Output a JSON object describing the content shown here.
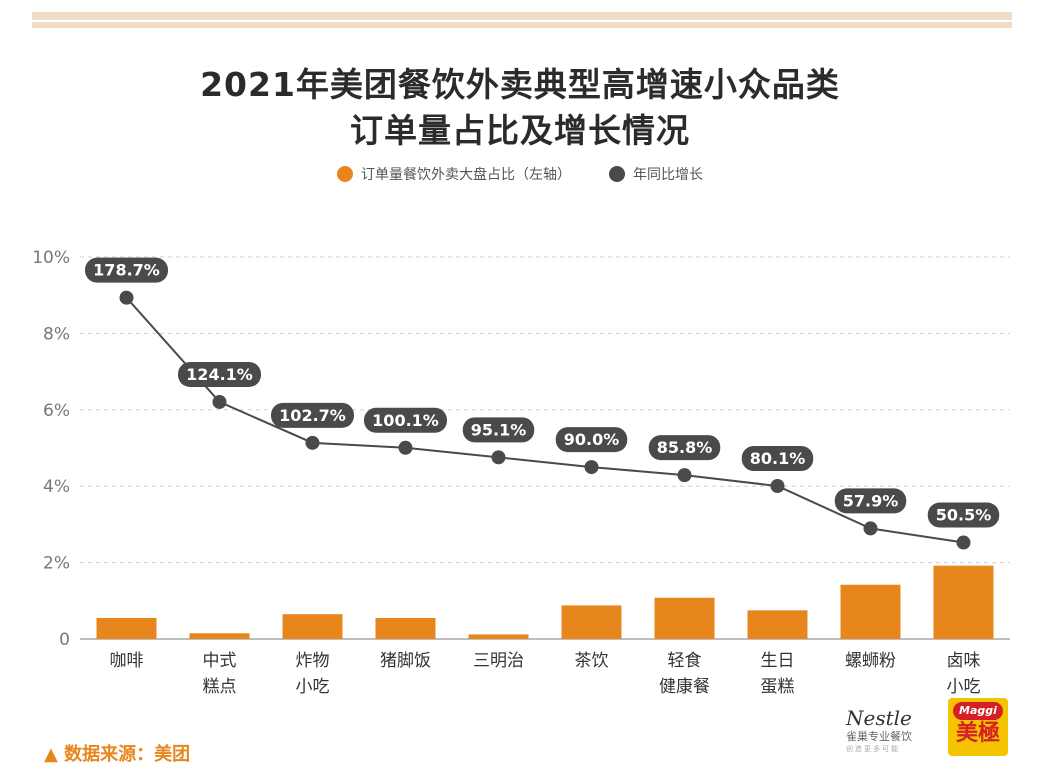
{
  "title_line1": "2021年美团餐饮外卖典型高增速小众品类",
  "title_line2": "订单量占比及增长情况",
  "source": "▲ 数据来源：美团",
  "logos": {
    "nestle": "Nestle",
    "nestle_sub": "雀巢专业餐饮",
    "nestle_tag": "创造更多可能",
    "maggi": "Maggi",
    "maggi_cn": "美極"
  },
  "colors": {
    "bar": "#e8861e",
    "line": "#4a4a4a",
    "grid": "#cfcfcf",
    "axis_text": "#777777"
  },
  "chart_data": {
    "type": "bar",
    "categories": [
      [
        "咖啡"
      ],
      [
        "中式",
        "糕点"
      ],
      [
        "炸物",
        "小吃"
      ],
      [
        "猪脚饭"
      ],
      [
        "三明治"
      ],
      [
        "茶饮"
      ],
      [
        "轻食",
        "健康餐"
      ],
      [
        "生日",
        "蛋糕"
      ],
      [
        "螺蛳粉"
      ],
      [
        "卤味",
        "小吃"
      ]
    ],
    "series": [
      {
        "name": "订单量餐饮外卖大盘占比（左轴）",
        "type": "bar",
        "values": [
          0.55,
          0.15,
          0.65,
          0.55,
          0.12,
          0.88,
          1.08,
          0.75,
          1.42,
          1.92
        ]
      },
      {
        "name": "年同比增长",
        "type": "line",
        "values": [
          178.7,
          124.1,
          102.7,
          100.1,
          95.1,
          90.0,
          85.8,
          80.1,
          57.9,
          50.5
        ],
        "labels": [
          "178.7%",
          "124.1%",
          "102.7%",
          "100.1%",
          "95.1%",
          "90.0%",
          "85.8%",
          "80.1%",
          "57.9%",
          "50.5%"
        ]
      }
    ],
    "ylim": [
      0,
      10
    ],
    "yticks": [
      "0",
      "2%",
      "4%",
      "6%",
      "8%",
      "10%"
    ],
    "y2lim": [
      0,
      200
    ],
    "grid": true,
    "legend": "top-center"
  }
}
